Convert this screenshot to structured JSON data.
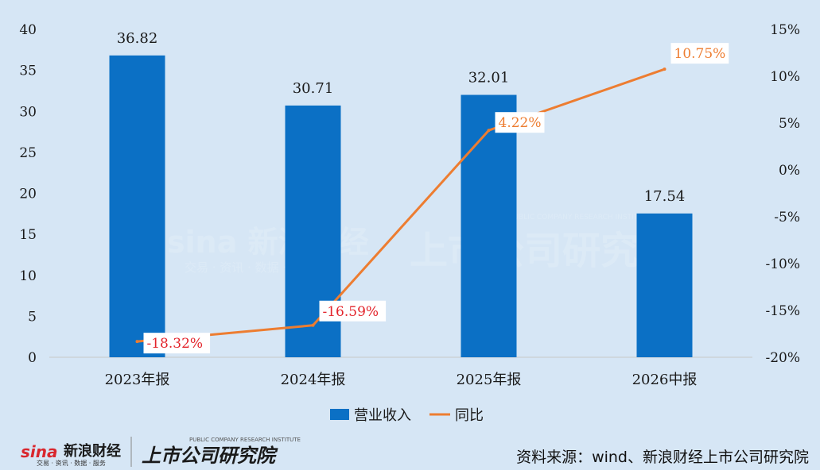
{
  "chart_data": {
    "type": "bar",
    "categories": [
      "2023年报",
      "2024年报",
      "2025年报",
      "2026中报"
    ],
    "series": [
      {
        "name": "营业收入",
        "type": "bar",
        "axis": "left",
        "color": "#0b70c5",
        "values": [
          36.82,
          30.71,
          32.01,
          17.54
        ],
        "labels": [
          "36.82",
          "30.71",
          "32.01",
          "17.54"
        ]
      },
      {
        "name": "同比",
        "type": "line",
        "axis": "right",
        "color": "#ed7d31",
        "values": [
          -18.32,
          -16.59,
          4.22,
          10.75
        ],
        "labels": [
          "-18.32%",
          "-16.59%",
          "4.22%",
          "10.75%"
        ],
        "label_colors": [
          "#e3242b",
          "#e3242b",
          "#ed7d31",
          "#ed7d31"
        ]
      }
    ],
    "y_left": {
      "min": 0,
      "max": 40,
      "ticks": [
        "0",
        "5",
        "10",
        "15",
        "20",
        "25",
        "30",
        "35",
        "40"
      ]
    },
    "y_right": {
      "min": -20,
      "max": 15,
      "ticks": [
        "-20%",
        "-15%",
        "-10%",
        "-5%",
        "0%",
        "5%",
        "10%",
        "15%"
      ]
    },
    "grid": false,
    "legend": {
      "position": "bottom",
      "items": [
        "营业收入",
        "同比"
      ]
    }
  },
  "watermark": {
    "brand": "新浪财经",
    "brand_sub": "交易 · 资讯 · 数据 · 服务",
    "institute": "上市公司研究院",
    "institute_en": "PUBLIC COMPANY RESEARCH INSTITUTE"
  },
  "footer": {
    "source": "资料来源：wind、新浪财经上市公司研究院"
  }
}
